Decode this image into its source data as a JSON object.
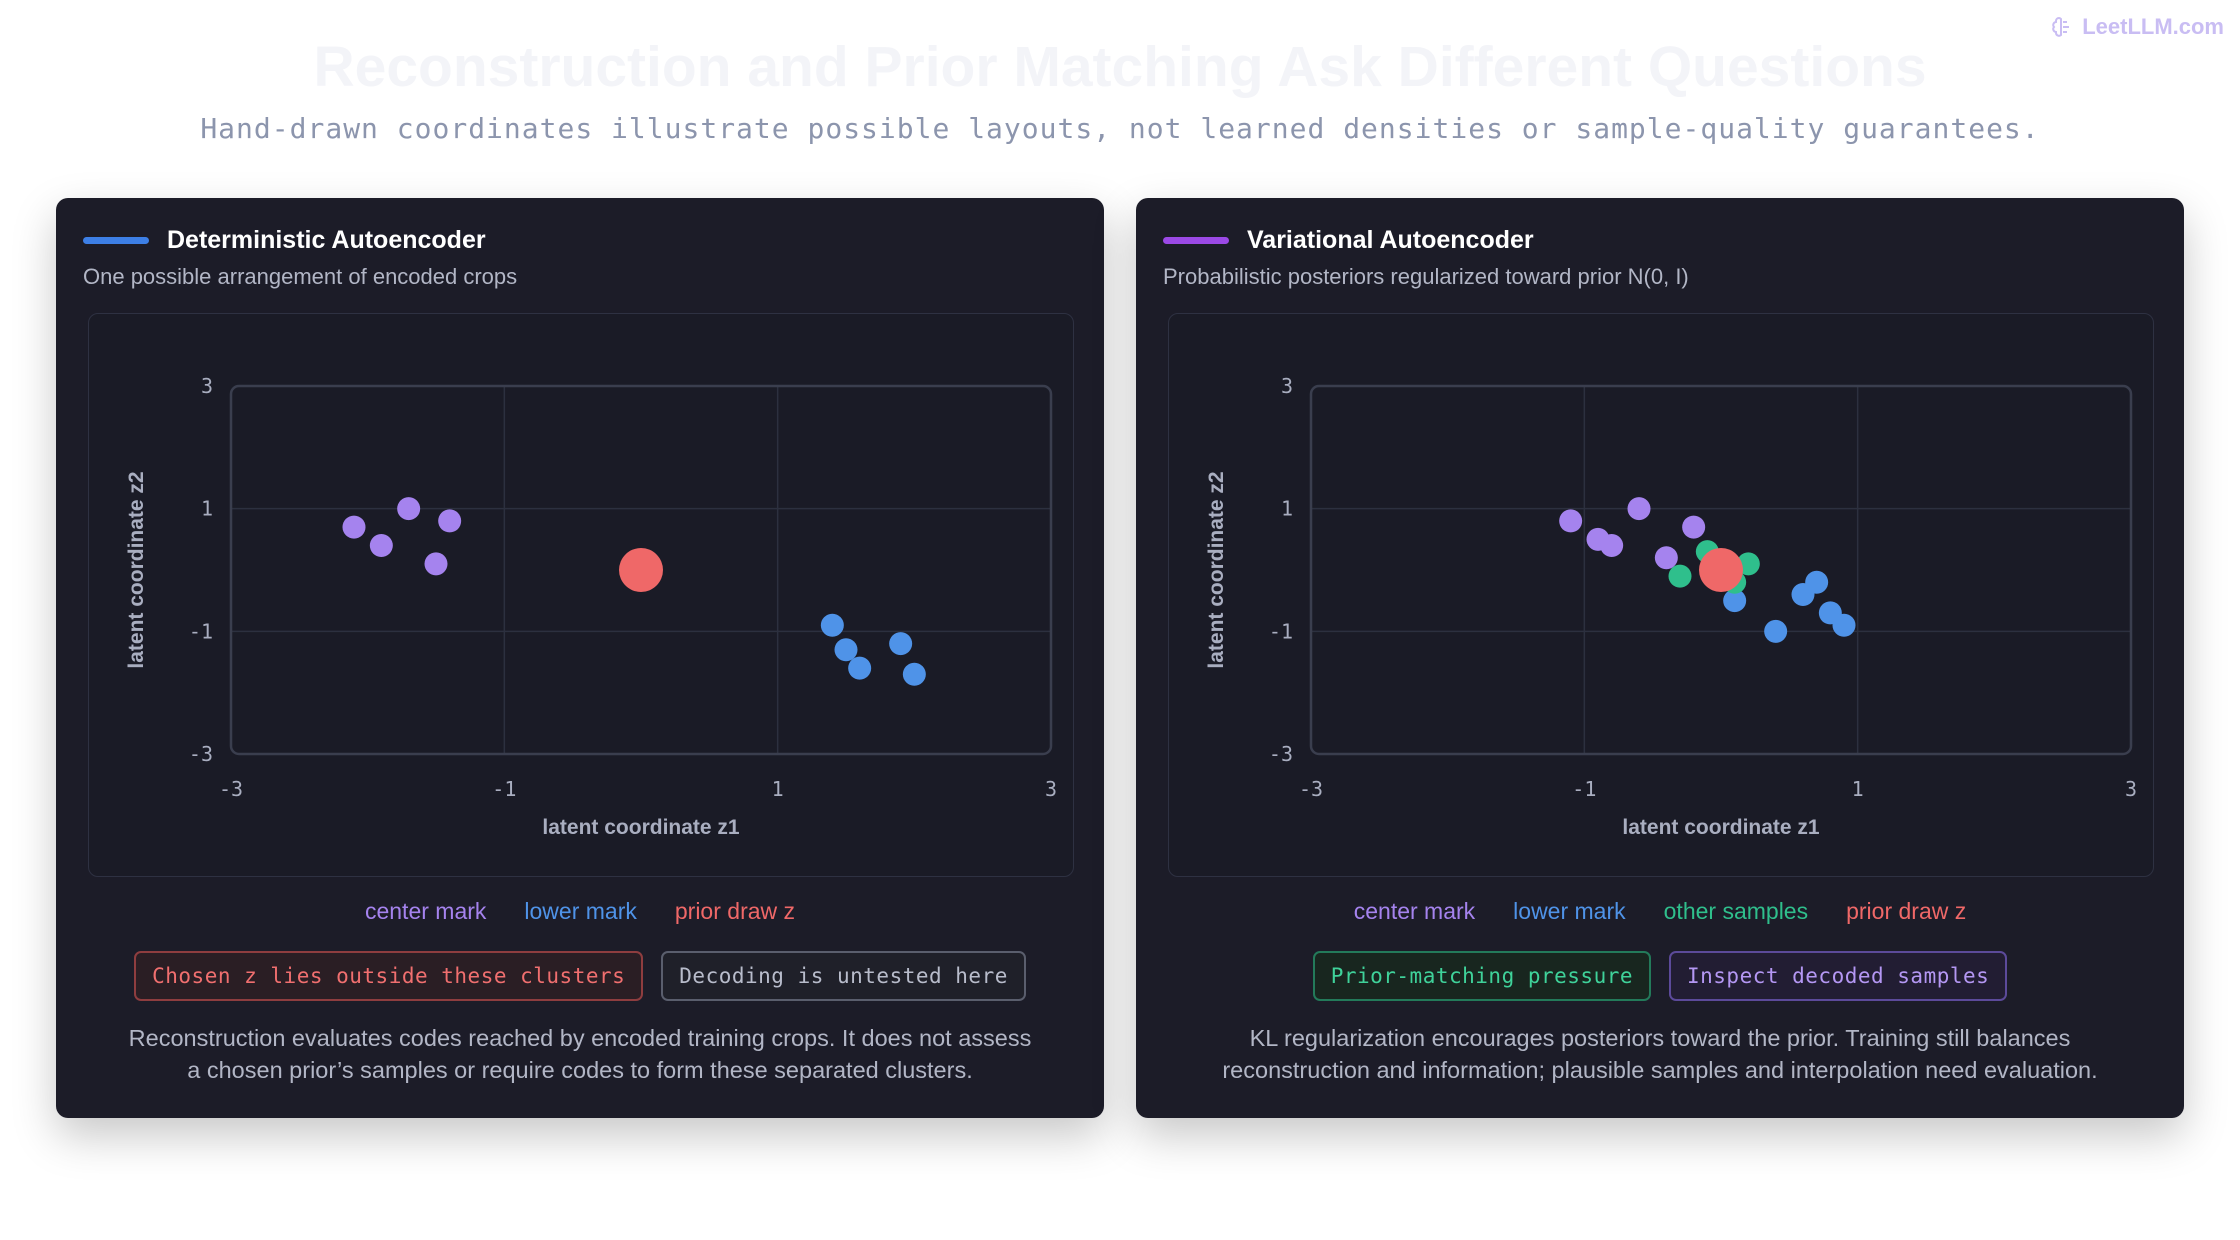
{
  "brand": "LeetLLM.com",
  "title": "Reconstruction and Prior Matching Ask Different Questions",
  "subtitle": "Hand-drawn coordinates illustrate possible layouts, not learned densities or sample-quality guarantees.",
  "colors": {
    "center": "#a583ee",
    "lower": "#4f93e8",
    "other": "#2fbf8c",
    "prior": "#ef6868",
    "ae_accent": "#3d7fe6",
    "vae_accent": "#9b49e6"
  },
  "panels": [
    {
      "title": "Deterministic Autoencoder",
      "subtitle": "One possible arrangement of encoded crops",
      "legend": [
        {
          "label": "center mark",
          "color": "#a583ee"
        },
        {
          "label": "lower mark",
          "color": "#4f93e8"
        },
        {
          "label": "prior draw z",
          "color": "#ef6868"
        }
      ],
      "tags": [
        {
          "label": "Chosen z lies outside these clusters",
          "text": "#f06f6f",
          "border": "#8e3d3f",
          "bg": "#2a1e24"
        },
        {
          "label": "Decoding is untested here",
          "text": "#b8bccb",
          "border": "#5a5e6d",
          "bg": "#1f2029"
        }
      ],
      "caption_lines": [
        "Reconstruction evaluates codes reached by encoded training crops. It does not assess",
        "a chosen prior’s samples or require codes to form these separated clusters."
      ]
    },
    {
      "title": "Variational Autoencoder",
      "subtitle": "Probabilistic posteriors regularized toward prior N(0, I)",
      "legend": [
        {
          "label": "center mark",
          "color": "#a583ee"
        },
        {
          "label": "lower mark",
          "color": "#4f93e8"
        },
        {
          "label": "other samples",
          "color": "#2fbf8c"
        },
        {
          "label": "prior draw z",
          "color": "#ef6868"
        }
      ],
      "tags": [
        {
          "label": "Prior-matching pressure",
          "text": "#3fd29a",
          "border": "#237a5a",
          "bg": "#18261f"
        },
        {
          "label": "Inspect decoded samples",
          "text": "#b497f3",
          "border": "#5c4a9a",
          "bg": "#221d33"
        }
      ],
      "caption_lines": [
        "KL regularization encourages posteriors toward the prior. Training still balances",
        "reconstruction and information; plausible samples and interpolation need evaluation."
      ]
    }
  ],
  "chart_data": [
    {
      "type": "scatter",
      "title": "Deterministic Autoencoder",
      "xlabel": "latent coordinate z1",
      "ylabel": "latent coordinate z2",
      "xlim": [
        -3,
        3
      ],
      "ylim": [
        -3,
        3
      ],
      "xticks": [
        "-3",
        "-1",
        "1",
        "3"
      ],
      "yticks": [
        "3",
        "1",
        "-1",
        "-3"
      ],
      "grid": true,
      "series": [
        {
          "name": "center mark",
          "color": "#a583ee",
          "points": [
            [
              -2.1,
              0.7
            ],
            [
              -1.7,
              1.0
            ],
            [
              -1.5,
              0.1
            ],
            [
              -1.9,
              0.4
            ],
            [
              -1.4,
              0.8
            ]
          ]
        },
        {
          "name": "lower mark",
          "color": "#4f93e8",
          "points": [
            [
              1.4,
              -0.9
            ],
            [
              1.5,
              -1.3
            ],
            [
              1.6,
              -1.6
            ],
            [
              1.9,
              -1.2
            ],
            [
              2.0,
              -1.7
            ]
          ]
        },
        {
          "name": "prior draw z",
          "color": "#ef6868",
          "points": [
            [
              0.0,
              0.0
            ]
          ],
          "large": true
        }
      ]
    },
    {
      "type": "scatter",
      "title": "Variational Autoencoder",
      "xlabel": "latent coordinate z1",
      "ylabel": "latent coordinate z2",
      "xlim": [
        -3,
        3
      ],
      "ylim": [
        -3,
        3
      ],
      "xticks": [
        "-3",
        "-1",
        "1",
        "3"
      ],
      "yticks": [
        "3",
        "1",
        "-1",
        "-3"
      ],
      "grid": true,
      "series": [
        {
          "name": "center mark",
          "color": "#a583ee",
          "points": [
            [
              -1.1,
              0.8
            ],
            [
              -0.9,
              0.5
            ],
            [
              -0.8,
              0.4
            ],
            [
              -0.6,
              1.0
            ],
            [
              -0.4,
              0.2
            ],
            [
              -0.2,
              0.7
            ]
          ]
        },
        {
          "name": "lower mark",
          "color": "#4f93e8",
          "points": [
            [
              0.1,
              -0.5
            ],
            [
              0.4,
              -1.0
            ],
            [
              0.6,
              -0.4
            ],
            [
              0.7,
              -0.2
            ],
            [
              0.8,
              -0.7
            ],
            [
              0.9,
              -0.9
            ]
          ]
        },
        {
          "name": "other samples",
          "color": "#2fbf8c",
          "points": [
            [
              -0.3,
              -0.1
            ],
            [
              -0.1,
              0.3
            ],
            [
              0.1,
              -0.2
            ],
            [
              0.2,
              0.1
            ]
          ]
        },
        {
          "name": "prior draw z",
          "color": "#ef6868",
          "points": [
            [
              0.0,
              0.0
            ]
          ],
          "large": true
        }
      ]
    }
  ]
}
